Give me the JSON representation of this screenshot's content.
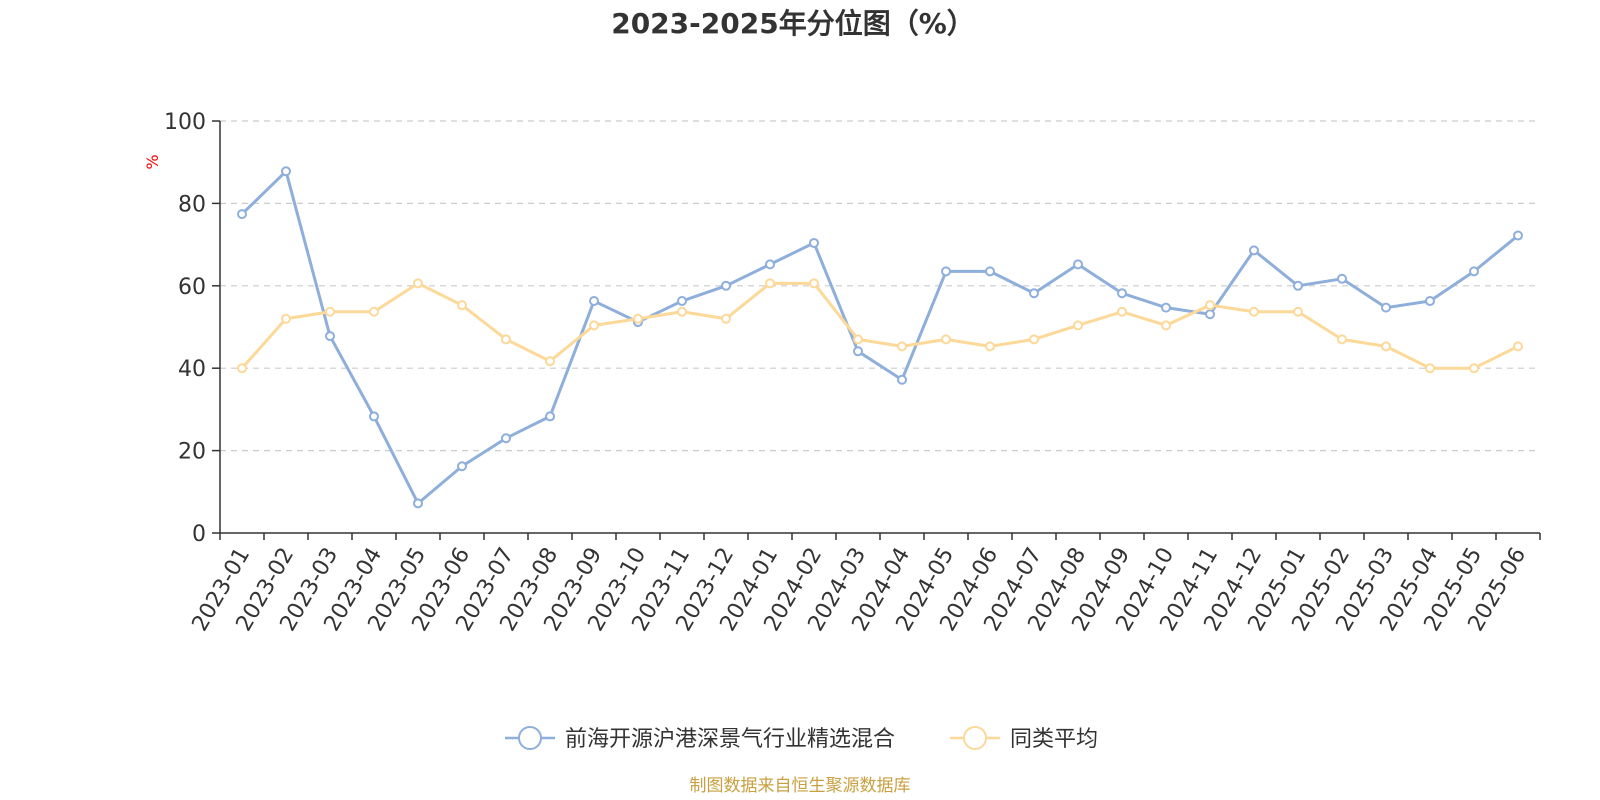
{
  "chart_data": {
    "type": "line",
    "title": "2023-2025年分位图（%）",
    "y_unit": "%",
    "ylim": [
      0,
      100
    ],
    "y_ticks": [
      0,
      20,
      40,
      60,
      80,
      100
    ],
    "grid": true,
    "legend_position": "bottom",
    "x": [
      "2023-01",
      "2023-02",
      "2023-03",
      "2023-04",
      "2023-05",
      "2023-06",
      "2023-07",
      "2023-08",
      "2023-09",
      "2023-10",
      "2023-11",
      "2023-12",
      "2024-01",
      "2024-02",
      "2024-03",
      "2024-04",
      "2024-05",
      "2024-06",
      "2024-07",
      "2024-08",
      "2024-09",
      "2024-10",
      "2024-11",
      "2024-12",
      "2025-01",
      "2025-02",
      "2025-03",
      "2025-04",
      "2025-05",
      "2025-06"
    ],
    "series": [
      {
        "name": "前海开源沪港深景气行业精选混合",
        "color": "#8eaedb",
        "values": [
          77.4,
          87.8,
          47.8,
          28.3,
          7.2,
          16.2,
          23.0,
          28.3,
          56.3,
          51.2,
          56.3,
          60.0,
          65.2,
          70.4,
          44.1,
          37.2,
          63.5,
          63.5,
          58.2,
          65.2,
          58.2,
          54.7,
          53.1,
          68.6,
          60.0,
          61.7,
          54.7,
          56.3,
          63.5,
          72.2
        ]
      },
      {
        "name": "同类平均",
        "color": "#fcd899",
        "values": [
          40.0,
          52.0,
          53.7,
          53.7,
          60.6,
          55.3,
          47.0,
          41.7,
          50.4,
          52.0,
          53.7,
          52.0,
          60.6,
          60.6,
          47.0,
          45.3,
          47.0,
          45.3,
          47.0,
          50.4,
          53.7,
          50.4,
          55.3,
          53.7,
          53.7,
          47.0,
          45.3,
          40.0,
          40.0,
          45.3
        ]
      }
    ]
  },
  "source_note": "制图数据来自恒生聚源数据库",
  "colors": {
    "axis": "#333333",
    "grid": "#cccccc",
    "unit_label": "#ff0000",
    "source_note": "#c8a040"
  }
}
